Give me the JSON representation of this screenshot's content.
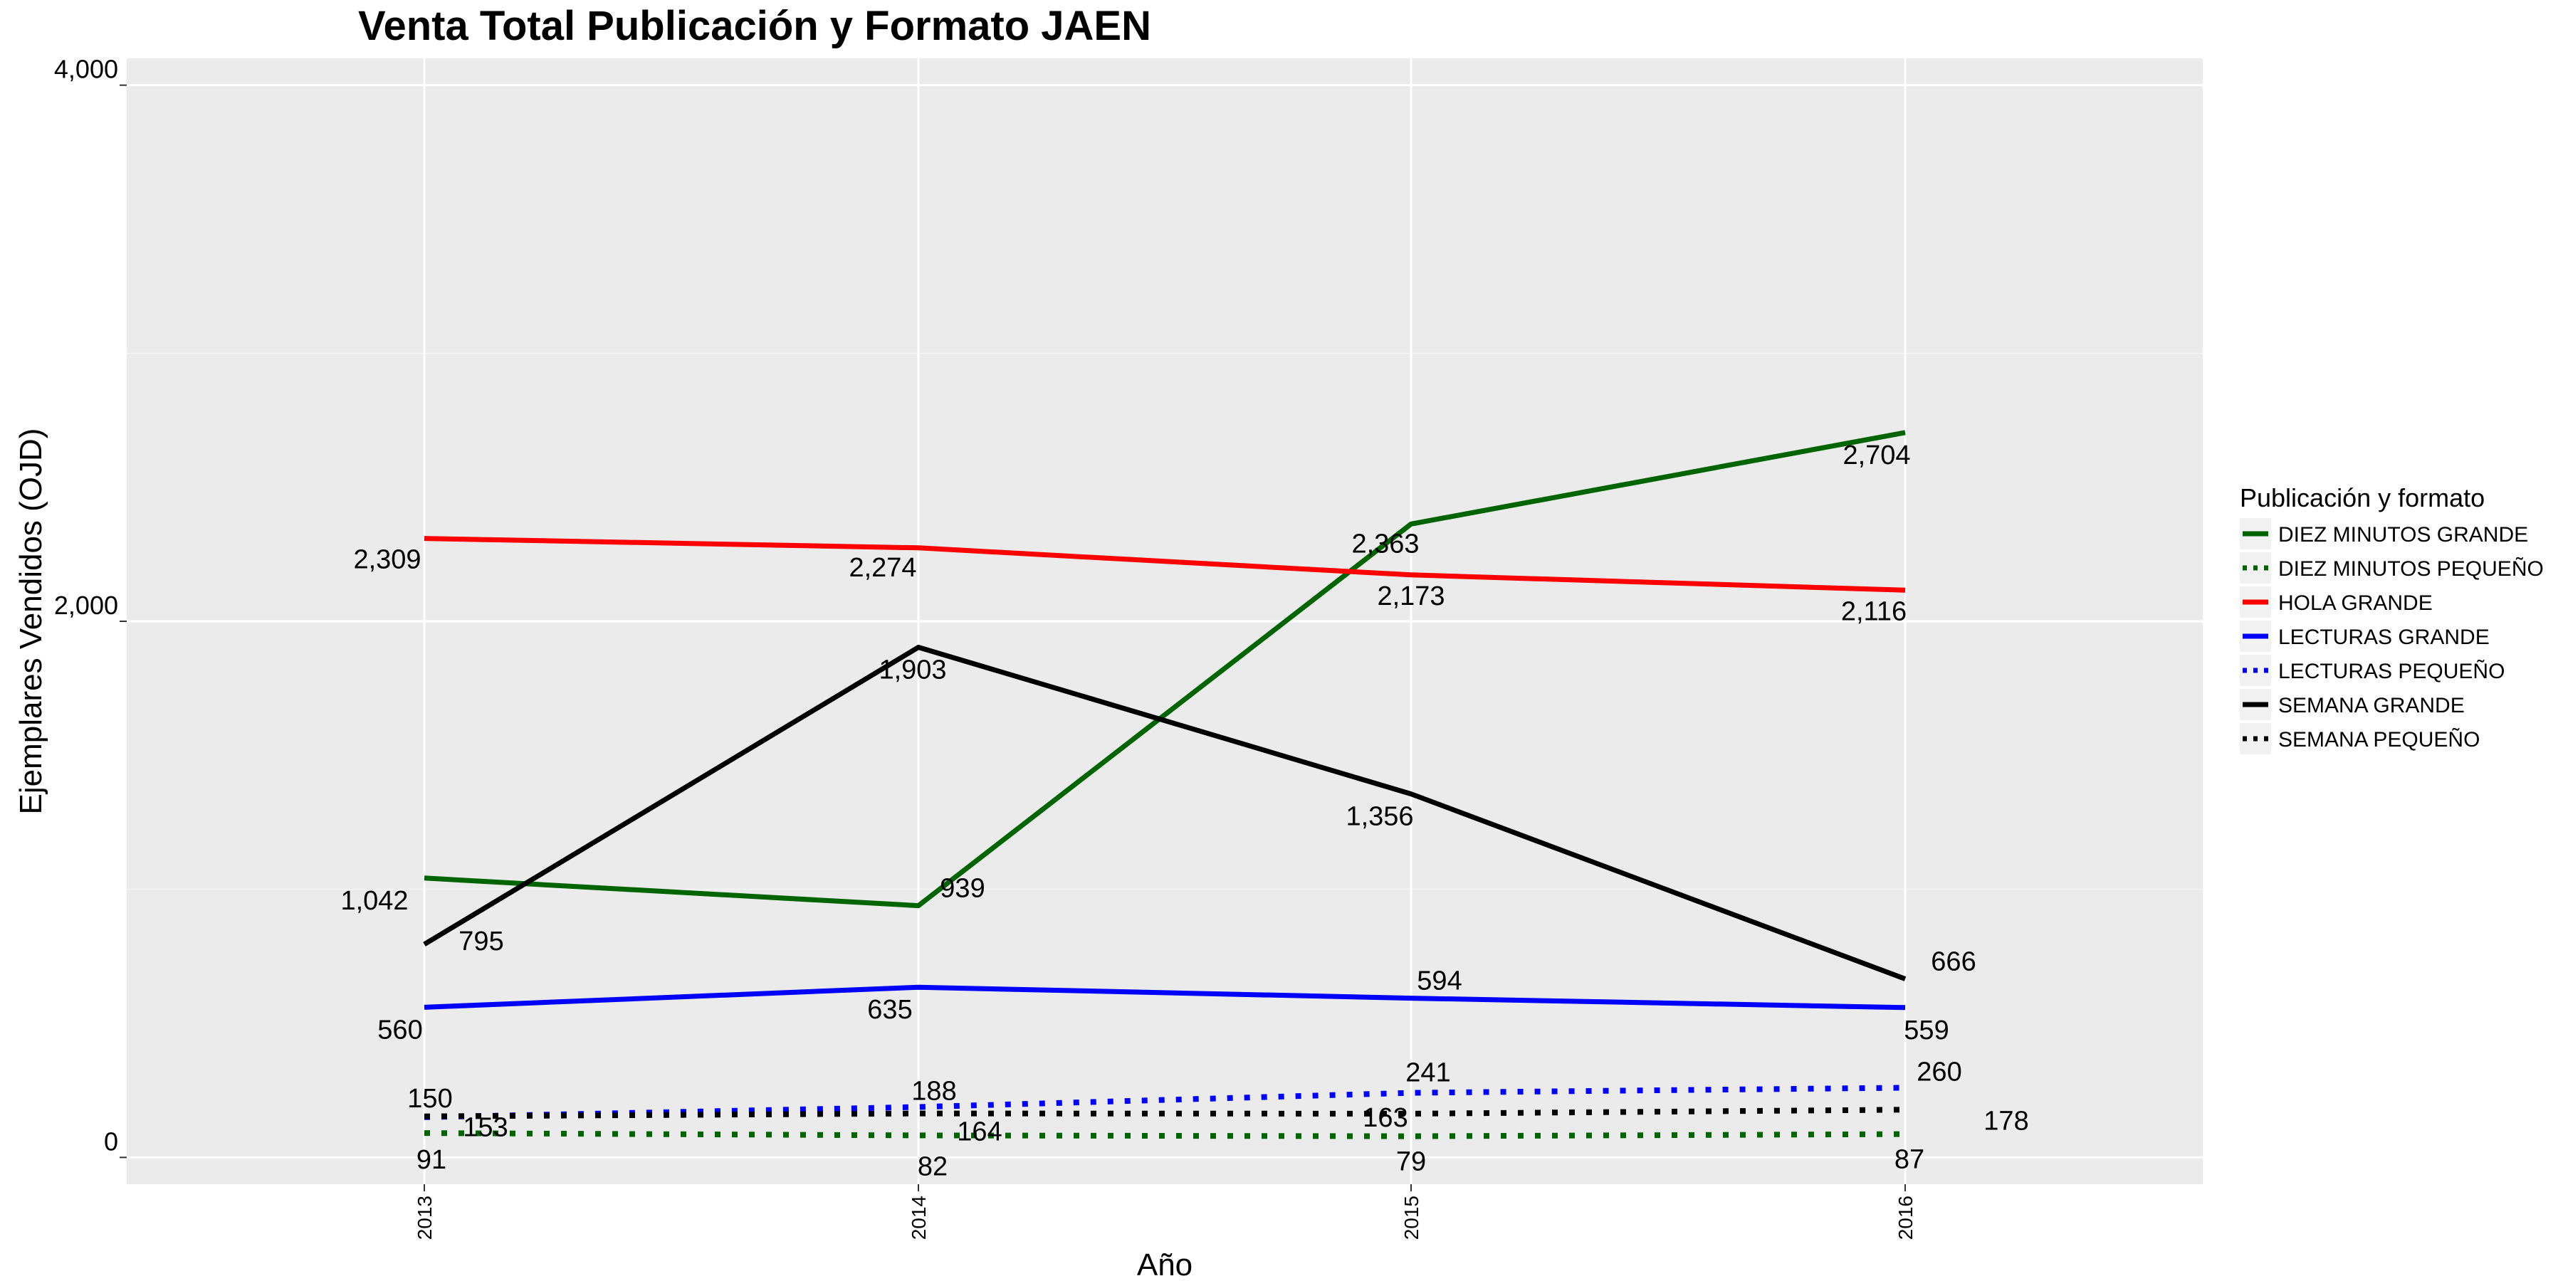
{
  "chart_data": {
    "type": "line",
    "title": "Venta Total Publicación y Formato  JAEN",
    "xlabel": "Año",
    "ylabel": "Ejemplares Vendidos (OJD)",
    "categories": [
      "2013",
      "2014",
      "2015",
      "2016"
    ],
    "ylim": [
      -100,
      4100
    ],
    "yticks": [
      0,
      2000,
      4000
    ],
    "ytick_labels": [
      "0",
      "2,000",
      "4,000"
    ],
    "grid": true,
    "legend_title": "Publicación y formato",
    "legend_position": "right",
    "series": [
      {
        "name": "DIEZ MINUTOS GRANDE",
        "color": "#006400",
        "style": "solid",
        "values": [
          1042,
          939,
          2363,
          2704
        ],
        "labels": [
          "1,042",
          "939",
          "2,363",
          "2,704"
        ]
      },
      {
        "name": "DIEZ MINUTOS PEQUEÑO",
        "color": "#006400",
        "style": "dotted",
        "values": [
          91,
          82,
          79,
          87
        ],
        "labels": [
          "91",
          "82",
          "79",
          "87"
        ]
      },
      {
        "name": "HOLA GRANDE",
        "color": "#ff0000",
        "style": "solid",
        "values": [
          2309,
          2274,
          2173,
          2116
        ],
        "labels": [
          "2,309",
          "2,274",
          "2,173",
          "2,116"
        ]
      },
      {
        "name": "LECTURAS GRANDE",
        "color": "#0000ff",
        "style": "solid",
        "values": [
          560,
          635,
          594,
          559
        ],
        "labels": [
          "560",
          "635",
          "594",
          "559"
        ]
      },
      {
        "name": "LECTURAS PEQUEÑO",
        "color": "#0000ff",
        "style": "dotted",
        "values": [
          150,
          188,
          241,
          260
        ],
        "labels": [
          "150",
          "188",
          "241",
          "260"
        ]
      },
      {
        "name": "SEMANA GRANDE",
        "color": "#000000",
        "style": "solid",
        "values": [
          795,
          1903,
          1356,
          666
        ],
        "labels": [
          "795",
          "1,903",
          "1,356",
          "666"
        ]
      },
      {
        "name": "SEMANA PEQUEÑO",
        "color": "#000000",
        "style": "dotted",
        "values": [
          153,
          164,
          163,
          178
        ],
        "labels": [
          "153",
          "164",
          "163",
          "178"
        ]
      }
    ]
  }
}
